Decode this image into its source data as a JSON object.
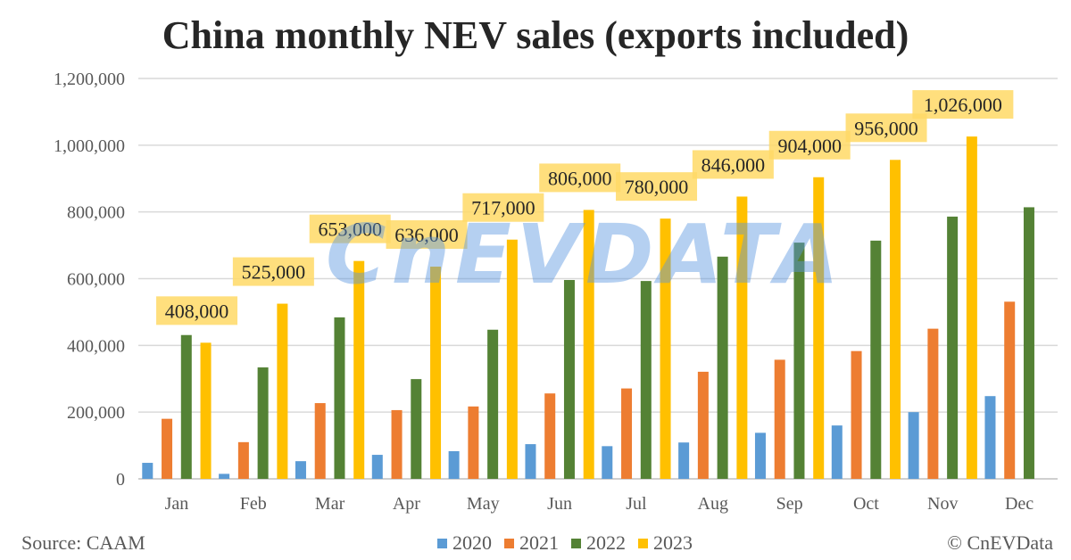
{
  "chart_data": {
    "type": "bar",
    "title": "China monthly NEV sales (exports included)",
    "xlabel": "",
    "ylabel": "",
    "ylim": [
      0,
      1200000
    ],
    "yticks": [
      "0",
      "200,000",
      "400,000",
      "600,000",
      "800,000",
      "1,000,000",
      "1,200,000"
    ],
    "grid": true,
    "legend_placement": "bottom",
    "categories": [
      "Jan",
      "Feb",
      "Mar",
      "Apr",
      "May",
      "Jun",
      "Jul",
      "Aug",
      "Sep",
      "Oct",
      "Nov",
      "Dec"
    ],
    "series": [
      {
        "name": "2020",
        "color": "#5b9bd5",
        "values": [
          48000,
          15000,
          53000,
          72000,
          83000,
          104000,
          98000,
          109000,
          138000,
          160000,
          200000,
          248000
        ]
      },
      {
        "name": "2021",
        "color": "#ed7d31",
        "values": [
          180000,
          110000,
          227000,
          206000,
          217000,
          256000,
          271000,
          321000,
          357000,
          383000,
          450000,
          531000
        ]
      },
      {
        "name": "2022",
        "color": "#548235",
        "values": [
          431000,
          334000,
          484000,
          299000,
          447000,
          596000,
          593000,
          666000,
          708000,
          714000,
          786000,
          814000
        ]
      },
      {
        "name": "2023",
        "color": "#ffc000",
        "values": [
          408000,
          525000,
          653000,
          636000,
          717000,
          806000,
          780000,
          846000,
          904000,
          956000,
          1026000,
          null
        ]
      }
    ],
    "data_labels_2023": [
      "408,000",
      "525,000",
      "653,000",
      "636,000",
      "717,000",
      "806,000",
      "780,000",
      "846,000",
      "904,000",
      "956,000",
      "1,026,000"
    ],
    "label_bg": "#ffd966"
  },
  "footer": {
    "source": "Source: CAAM",
    "copyright": "© CnEVData"
  },
  "watermark": "CnEVDATA"
}
